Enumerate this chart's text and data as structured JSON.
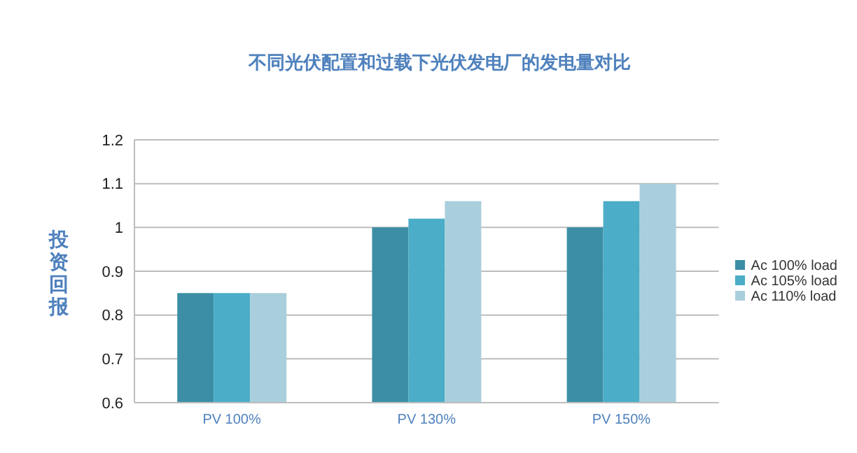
{
  "chart_data": {
    "type": "bar",
    "title": "不同光伏配置和过载下光伏发电厂的发电量对比",
    "ylabel": "投资回报",
    "categories": [
      "PV 100%",
      "PV 130%",
      "PV 150%"
    ],
    "series": [
      {
        "name": "Ac 100% load",
        "color": "#3b8ea5",
        "values": [
          0.85,
          1.0,
          1.0
        ]
      },
      {
        "name": "Ac 105% load",
        "color": "#4badc7",
        "values": [
          0.85,
          1.02,
          1.06
        ]
      },
      {
        "name": "Ac 110% load",
        "color": "#a9cfdc",
        "values": [
          0.85,
          1.06,
          1.1
        ]
      }
    ],
    "ylim": [
      0.6,
      1.2
    ],
    "yticks": [
      0.6,
      0.7,
      0.8,
      0.9,
      1,
      1.1,
      1.2
    ],
    "grid": "y",
    "legend": "right"
  }
}
